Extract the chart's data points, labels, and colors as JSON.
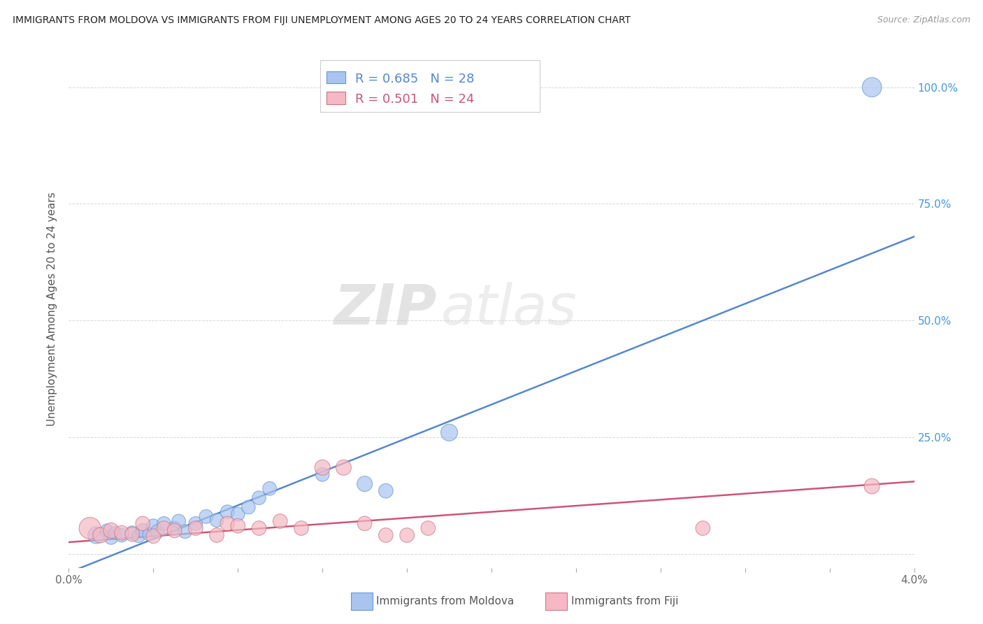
{
  "title": "IMMIGRANTS FROM MOLDOVA VS IMMIGRANTS FROM FIJI UNEMPLOYMENT AMONG AGES 20 TO 24 YEARS CORRELATION CHART",
  "source": "Source: ZipAtlas.com",
  "ylabel": "Unemployment Among Ages 20 to 24 years",
  "y_axis_labels": [
    "",
    "25.0%",
    "50.0%",
    "75.0%",
    "100.0%"
  ],
  "x_range": [
    0.0,
    0.04
  ],
  "y_range": [
    -0.03,
    1.08
  ],
  "moldova_R": 0.685,
  "moldova_N": 28,
  "fiji_R": 0.501,
  "fiji_N": 24,
  "moldova_color": "#aac4f0",
  "fiji_color": "#f5b8c4",
  "moldova_edge_color": "#6699cc",
  "fiji_edge_color": "#cc7788",
  "moldova_line_color": "#5588cc",
  "fiji_line_color": "#cc5577",
  "watermark_zip": "ZIP",
  "watermark_atlas": "atlas",
  "moldova_line_x0": 0.0,
  "moldova_line_x1": 0.04,
  "moldova_line_y0": -0.04,
  "moldova_line_y1": 0.68,
  "fiji_line_x0": 0.0,
  "fiji_line_x1": 0.04,
  "fiji_line_y0": 0.025,
  "fiji_line_y1": 0.155,
  "moldova_scatter_x": [
    0.0013,
    0.0018,
    0.002,
    0.0022,
    0.0025,
    0.003,
    0.0033,
    0.0035,
    0.0038,
    0.004,
    0.0042,
    0.0045,
    0.005,
    0.0052,
    0.0055,
    0.006,
    0.0065,
    0.007,
    0.0075,
    0.008,
    0.0085,
    0.009,
    0.0095,
    0.012,
    0.014,
    0.015,
    0.018,
    0.038
  ],
  "moldova_scatter_y": [
    0.04,
    0.05,
    0.035,
    0.045,
    0.04,
    0.045,
    0.038,
    0.05,
    0.042,
    0.06,
    0.048,
    0.065,
    0.055,
    0.07,
    0.048,
    0.065,
    0.08,
    0.072,
    0.09,
    0.085,
    0.1,
    0.12,
    0.14,
    0.17,
    0.15,
    0.135,
    0.26,
    1.0
  ],
  "moldova_scatter_size": [
    300,
    180,
    200,
    180,
    200,
    200,
    180,
    200,
    180,
    200,
    200,
    200,
    200,
    200,
    200,
    200,
    200,
    200,
    200,
    200,
    200,
    200,
    200,
    200,
    250,
    220,
    300,
    400
  ],
  "fiji_scatter_x": [
    0.001,
    0.0015,
    0.002,
    0.0025,
    0.003,
    0.0035,
    0.004,
    0.0045,
    0.005,
    0.006,
    0.007,
    0.0075,
    0.008,
    0.009,
    0.01,
    0.011,
    0.012,
    0.013,
    0.014,
    0.015,
    0.016,
    0.017,
    0.03,
    0.038
  ],
  "fiji_scatter_y": [
    0.055,
    0.04,
    0.05,
    0.045,
    0.042,
    0.065,
    0.038,
    0.055,
    0.05,
    0.055,
    0.04,
    0.065,
    0.06,
    0.055,
    0.07,
    0.055,
    0.185,
    0.185,
    0.065,
    0.04,
    0.04,
    0.055,
    0.055,
    0.145
  ],
  "fiji_scatter_size": [
    500,
    250,
    250,
    220,
    220,
    220,
    220,
    220,
    220,
    220,
    220,
    220,
    220,
    220,
    220,
    220,
    250,
    250,
    220,
    220,
    220,
    220,
    220,
    250
  ]
}
